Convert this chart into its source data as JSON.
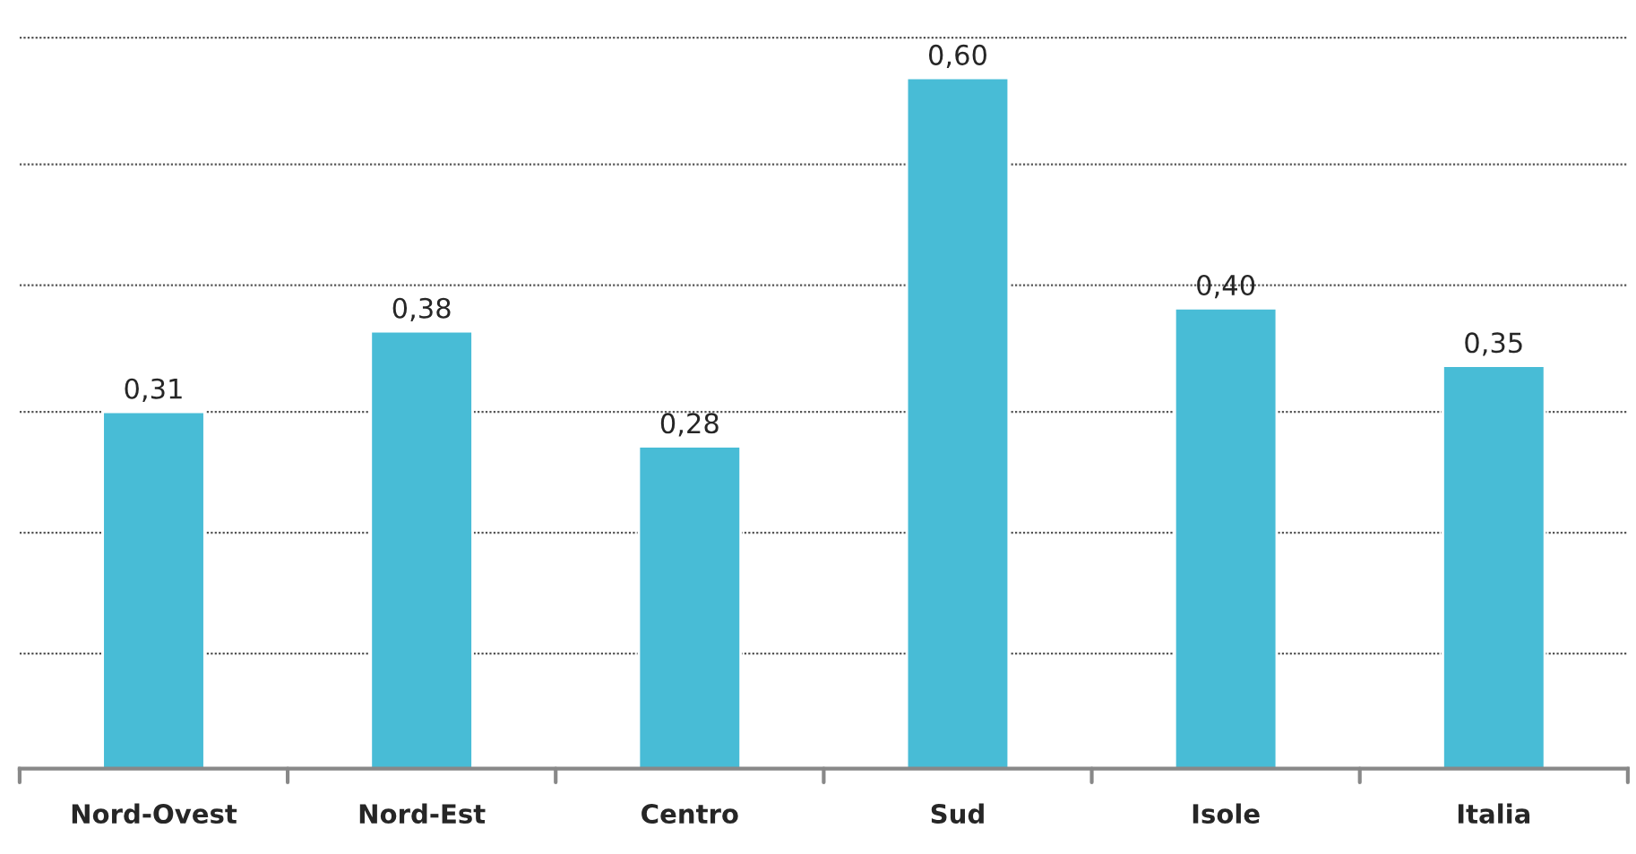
{
  "chart_data": {
    "type": "bar",
    "categories": [
      "Nord-Ovest",
      "Nord-Est",
      "Centro",
      "Sud",
      "Isole",
      "Italia"
    ],
    "values": [
      0.31,
      0.38,
      0.28,
      0.6,
      0.4,
      0.35
    ],
    "value_labels": [
      "0,31",
      "0,38",
      "0,28",
      "0,60",
      "0,40",
      "0,35"
    ],
    "color": "#48bcd6",
    "yticks": [
      {
        "value": 0.1,
        "label": null
      },
      {
        "value": 0.205,
        "label": null
      },
      {
        "value": 0.31,
        "label": null
      },
      {
        "value": 0.42,
        "label": null
      },
      {
        "value": 0.525,
        "label": null
      },
      {
        "value": 0.635,
        "label": null
      }
    ],
    "grid": "y",
    "tick_labels": "x"
  }
}
